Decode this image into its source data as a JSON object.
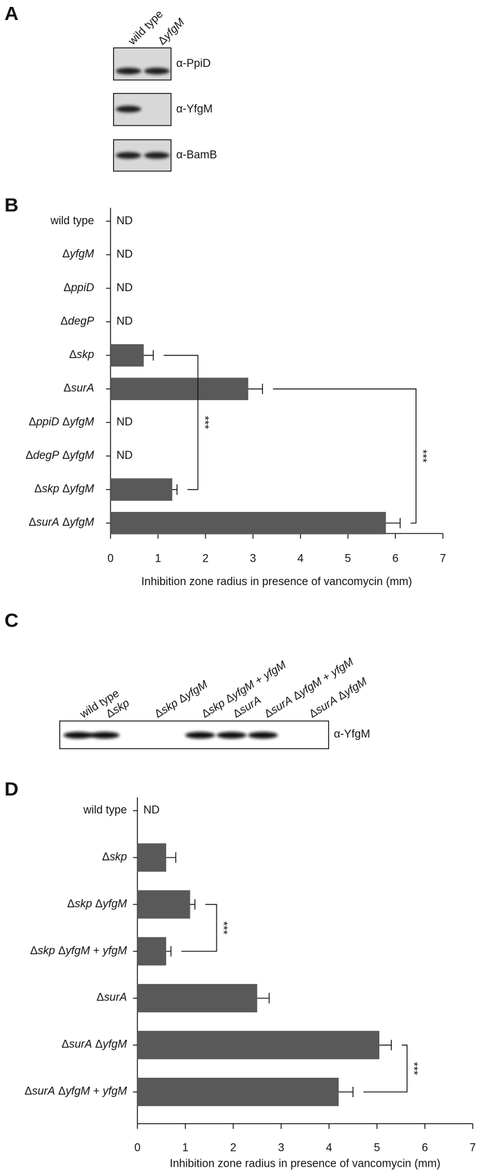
{
  "panel_labels": [
    "A",
    "B",
    "C",
    "D"
  ],
  "blot_a": {
    "lanes": [
      "wild type",
      "ΔyfgM"
    ],
    "antibodies": [
      "α-PpiD",
      "α-YfgM",
      "α-BamB"
    ]
  },
  "blot_c": {
    "lanes": [
      "wild type",
      "Δskp",
      "Δskp ΔyfgM",
      "Δskp ΔyfgM + yfgM",
      "ΔsurA",
      "ΔsurA ΔyfgM + yfgM",
      "ΔsurA ΔyfgM"
    ],
    "antibody": "α-YfgM"
  },
  "chart_data": [
    {
      "type": "bar",
      "orientation": "horizontal",
      "color": "#595959",
      "categories": [
        "wild type",
        "ΔyfgM",
        "ΔppiD",
        "ΔdegP",
        "Δskp",
        "ΔsurA",
        "ΔppiD ΔyfgM",
        "ΔdegP ΔyfgM",
        "Δskp ΔyfgM",
        "ΔsurA ΔyfgM"
      ],
      "values": [
        null,
        null,
        null,
        null,
        0.7,
        2.9,
        null,
        null,
        1.3,
        5.8
      ],
      "errors": [
        null,
        null,
        null,
        null,
        0.2,
        0.3,
        null,
        null,
        0.1,
        0.3
      ],
      "value_labels": [
        "ND",
        "ND",
        "ND",
        "ND",
        null,
        null,
        "ND",
        "ND",
        null,
        null
      ],
      "xlabel": "Inhibition zone radius in presence of vancomycin (mm)",
      "xlim": [
        0,
        7
      ],
      "xticks": [
        0,
        1,
        2,
        3,
        4,
        5,
        6,
        7
      ],
      "significance": [
        "***",
        "***"
      ]
    },
    {
      "type": "bar",
      "orientation": "horizontal",
      "color": "#595959",
      "categories": [
        "wild type",
        "Δskp",
        "Δskp ΔyfgM",
        "Δskp ΔyfgM + yfgM",
        "ΔsurA",
        "ΔsurA ΔyfgM",
        "ΔsurA ΔyfgM + yfgM"
      ],
      "values": [
        null,
        0.6,
        1.1,
        0.6,
        2.5,
        5.05,
        4.2
      ],
      "errors": [
        null,
        0.2,
        0.1,
        0.1,
        0.25,
        0.25,
        0.3
      ],
      "value_labels": [
        "ND",
        null,
        null,
        null,
        null,
        null,
        null
      ],
      "xlabel": "Inhibition zone radius in presence of vancomycin (mm)",
      "xlim": [
        0,
        7
      ],
      "xticks": [
        0,
        1,
        2,
        3,
        4,
        5,
        6,
        7
      ],
      "significance": [
        "***",
        "***"
      ]
    }
  ]
}
